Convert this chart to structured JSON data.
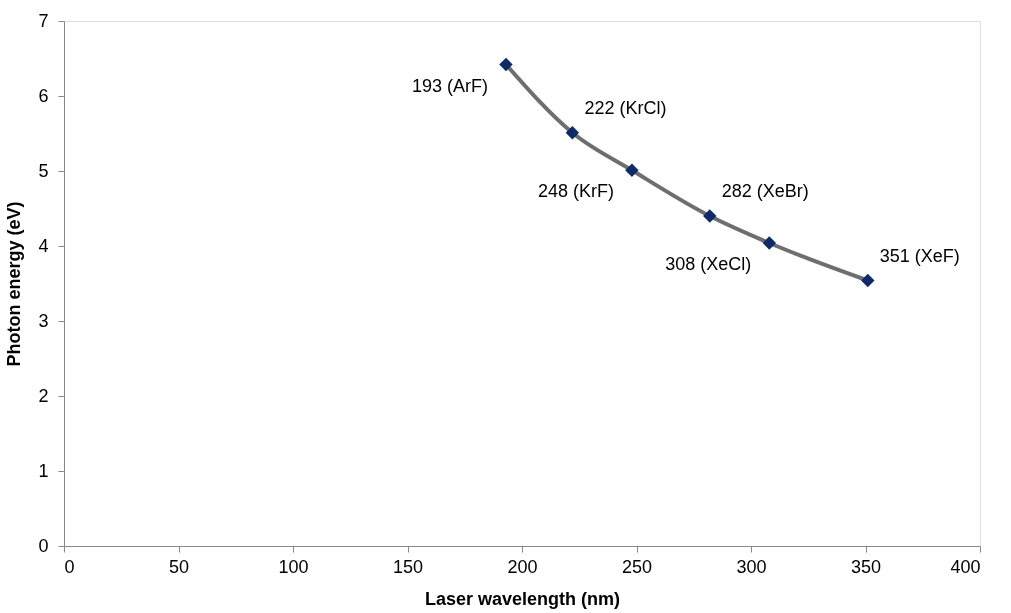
{
  "chart_data": {
    "type": "line",
    "xlabel": "Laser wavelength (nm)",
    "ylabel": "Photon energy (eV)",
    "x": [
      193,
      222,
      248,
      282,
      308,
      351
    ],
    "series": [
      {
        "color": "#6e6e6e",
        "marker": "none",
        "values": [
          6.42,
          5.51,
          5.01,
          4.4,
          4.04,
          3.54
        ]
      },
      {
        "type": "scatter",
        "color": "#0f2a6b",
        "marker": "diamond",
        "values": [
          6.42,
          5.51,
          5.01,
          4.4,
          4.04,
          3.54
        ]
      }
    ],
    "line_style": "solid",
    "xlim": [
      0,
      400
    ],
    "xticks": [
      0,
      50,
      100,
      150,
      200,
      250,
      300,
      350,
      400
    ],
    "ylim": [
      0,
      7
    ],
    "yticks": [
      0,
      1,
      2,
      3,
      4,
      5,
      6,
      7
    ],
    "grid": false,
    "annotations": [
      {
        "text": "193 (ArF)",
        "x": 193,
        "y": 6.42
      },
      {
        "text": "222 (KrCl)",
        "x": 222,
        "y": 5.51
      },
      {
        "text": "248 (KrF)",
        "x": 248,
        "y": 5.01
      },
      {
        "text": "282 (XeBr)",
        "x": 282,
        "y": 4.4
      },
      {
        "text": "308 (XeCl)",
        "x": 308,
        "y": 4.04
      },
      {
        "text": "351 (XeF)",
        "x": 351,
        "y": 3.54
      }
    ]
  }
}
